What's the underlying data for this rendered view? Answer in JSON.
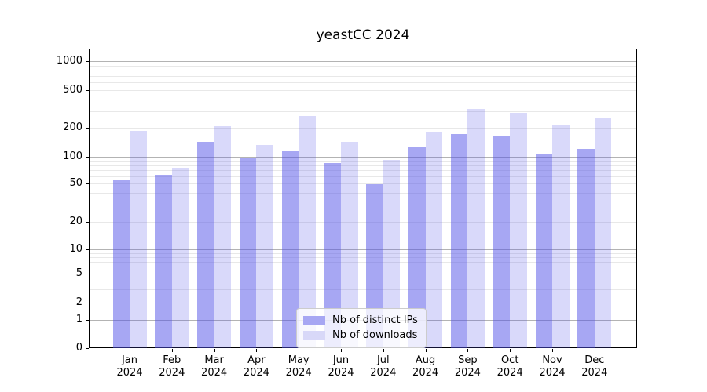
{
  "title": "yeastCC 2024",
  "chart_data": {
    "type": "bar",
    "title": "yeastCC 2024",
    "categories": [
      "Jan",
      "Feb",
      "Mar",
      "Apr",
      "May",
      "Jun",
      "Jul",
      "Aug",
      "Sep",
      "Oct",
      "Nov",
      "Dec"
    ],
    "category_year": "2024",
    "series": [
      {
        "name": "Nb of distinct IPs",
        "color": "#a7a7f3",
        "css_fill": "rgba(80,80,232,0.50)",
        "values": [
          54,
          62,
          143,
          95,
          116,
          85,
          49,
          129,
          173,
          162,
          105,
          121
        ]
      },
      {
        "name": "Nb of downloads",
        "color": "#d8d8f8",
        "css_fill": "rgba(80,80,232,0.22)",
        "values": [
          188,
          75,
          210,
          133,
          265,
          144,
          92,
          179,
          320,
          288,
          217,
          257
        ]
      }
    ],
    "yscale": "symlog",
    "ytick_labels": [
      "0",
      "1",
      "2",
      "5",
      "10",
      "20",
      "50",
      "100",
      "200",
      "500",
      "1000"
    ],
    "ylim": [
      0,
      1350
    ],
    "grid": true,
    "legend_position": "lower center",
    "colors": {
      "grid_major": "#b3b3b3",
      "grid_minor": "#e8e8e8",
      "spine": "#000000",
      "text": "#000000",
      "background": "#ffffff"
    }
  }
}
